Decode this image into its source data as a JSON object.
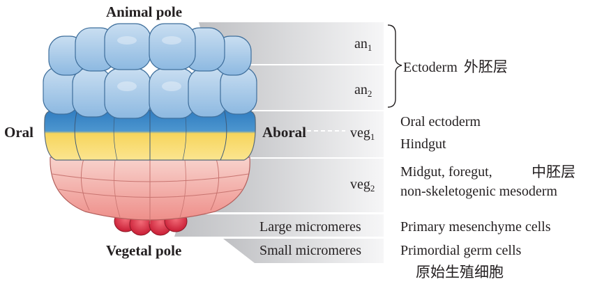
{
  "poles": {
    "animal": "Animal pole",
    "vegetal": "Vegetal pole",
    "oral": "Oral",
    "aboral": "Aboral"
  },
  "tiers": [
    {
      "id": "an1",
      "base": "an",
      "sub": "1"
    },
    {
      "id": "an2",
      "base": "an",
      "sub": "2"
    },
    {
      "id": "veg1",
      "base": "veg",
      "sub": "1"
    },
    {
      "id": "veg2",
      "base": "veg",
      "sub": "2"
    },
    {
      "id": "large",
      "label": "Large micromeres"
    },
    {
      "id": "small",
      "label": "Small micromeres"
    }
  ],
  "fates": {
    "ectoderm": "Ectoderm",
    "ectoderm_cn": "外胚层",
    "oral_ectoderm": "Oral ectoderm",
    "hindgut": "Hindgut",
    "midgut_line1": "Midgut, foregut,",
    "midgut_line2": "non-skeletogenic mesoderm",
    "mesoderm_cn": "中胚层",
    "primary_mesenchyme": "Primary mesenchyme cells",
    "primordial_germ": "Primordial germ cells",
    "germ_cn": "原始生殖细胞"
  },
  "colors": {
    "animal_light": "#a9cbe8",
    "animal_mid": "#7fb0dc",
    "animal_outline": "#3f6f9c",
    "veg1_blue": "#3d88c6",
    "veg1_yellow": "#f8db6a",
    "veg2_salmon": "#f3a6a0",
    "veg2_pink": "#f6c7c2",
    "micromere_red": "#dc3045",
    "band_gray": "#d2d3d5"
  }
}
